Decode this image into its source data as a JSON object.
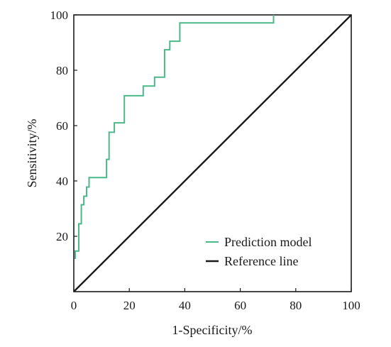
{
  "chart_data": {
    "type": "line",
    "title": "",
    "xlabel": "1-Specificity/%",
    "ylabel": "Sensitivity/%",
    "xlim": [
      0,
      100
    ],
    "ylim": [
      0,
      100
    ],
    "x_ticks": [
      0,
      20,
      40,
      60,
      80,
      100
    ],
    "y_ticks": [
      20,
      40,
      60,
      80,
      100
    ],
    "grid": false,
    "legend_position": "bottom-right",
    "series": [
      {
        "name": "Prediction model",
        "color": "#4cb88a",
        "step": true,
        "x": [
          0.5,
          0.5,
          1.8,
          1.8,
          2.7,
          2.7,
          3.6,
          3.6,
          4.6,
          4.6,
          5.5,
          5.5,
          7.3,
          7.3,
          11.8,
          11.8,
          12.7,
          12.7,
          14.6,
          14.6,
          18.2,
          18.2,
          25.0,
          25.0,
          29.1,
          29.1,
          32.7,
          32.7,
          34.6,
          34.6,
          38.2,
          38.2,
          72.0,
          72.0
        ],
        "y": [
          11.8,
          14.7,
          14.7,
          24.5,
          24.5,
          31.4,
          31.4,
          34.5,
          34.5,
          37.8,
          37.8,
          41.2,
          41.2,
          41.2,
          41.2,
          47.8,
          47.8,
          57.6,
          57.6,
          61.0,
          61.0,
          70.8,
          70.8,
          74.3,
          74.3,
          77.5,
          77.5,
          87.4,
          87.4,
          90.5,
          90.5,
          97.1,
          97.1,
          100
        ]
      },
      {
        "name": "Reference line",
        "color": "#1a1a1a",
        "x": [
          0,
          100
        ],
        "y": [
          0,
          100
        ]
      }
    ]
  }
}
